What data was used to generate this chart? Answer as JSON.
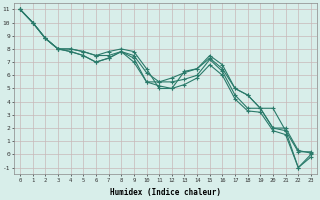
{
  "title": "",
  "xlabel": "Humidex (Indice chaleur)",
  "ylabel": "",
  "bg_color": "#d8eeea",
  "grid_color": "#c8b8b8",
  "line_color": "#2a7a6a",
  "xlim": [
    -0.5,
    23.5
  ],
  "ylim": [
    -1.5,
    11.5
  ],
  "xticks": [
    0,
    1,
    2,
    3,
    4,
    5,
    6,
    7,
    8,
    9,
    10,
    11,
    12,
    13,
    14,
    15,
    16,
    17,
    18,
    19,
    20,
    21,
    22,
    23
  ],
  "yticks": [
    -1,
    0,
    1,
    2,
    3,
    4,
    5,
    6,
    7,
    8,
    9,
    10,
    11
  ],
  "lines": [
    {
      "x": [
        0,
        1,
        2,
        3,
        4,
        5,
        6,
        7,
        8,
        9,
        10,
        11,
        12,
        13,
        14,
        15,
        16,
        17,
        18,
        19,
        20,
        21,
        22,
        23
      ],
      "y": [
        11,
        10,
        8.8,
        8.0,
        8.0,
        7.8,
        7.5,
        7.8,
        8.0,
        7.8,
        6.5,
        5.0,
        5.0,
        6.3,
        6.5,
        7.5,
        6.8,
        5.0,
        4.5,
        3.5,
        3.5,
        1.8,
        0.2,
        0.2
      ]
    },
    {
      "x": [
        0,
        1,
        2,
        3,
        4,
        5,
        6,
        7,
        8,
        9,
        10,
        11,
        12,
        13,
        14,
        15,
        16,
        17,
        18,
        19,
        20,
        21,
        22,
        23
      ],
      "y": [
        11,
        10,
        8.8,
        8.0,
        7.8,
        7.5,
        7.0,
        7.3,
        7.8,
        7.3,
        5.5,
        5.5,
        5.5,
        5.7,
        6.0,
        7.2,
        6.3,
        4.5,
        3.5,
        3.5,
        2.0,
        1.8,
        -1.0,
        0.0
      ]
    },
    {
      "x": [
        0,
        1,
        2,
        3,
        4,
        5,
        6,
        7,
        8,
        9,
        10,
        11,
        12,
        13,
        14,
        15,
        16,
        17,
        18,
        19,
        20,
        21,
        22,
        23
      ],
      "y": [
        11,
        10,
        8.8,
        8.0,
        7.8,
        7.5,
        7.0,
        7.3,
        7.8,
        7.0,
        5.5,
        5.2,
        5.0,
        5.3,
        5.8,
        6.8,
        6.0,
        4.2,
        3.3,
        3.2,
        1.8,
        1.5,
        -1.0,
        -0.2
      ]
    },
    {
      "x": [
        0,
        1,
        2,
        3,
        4,
        5,
        6,
        7,
        8,
        9,
        10,
        11,
        12,
        13,
        14,
        15,
        16,
        17,
        18,
        19,
        20,
        21,
        22,
        23
      ],
      "y": [
        11,
        10,
        8.8,
        8.0,
        8.0,
        7.8,
        7.5,
        7.5,
        7.8,
        7.5,
        6.2,
        5.5,
        5.8,
        6.2,
        6.5,
        7.3,
        6.5,
        5.0,
        4.5,
        3.5,
        2.0,
        2.0,
        0.3,
        0.1
      ]
    }
  ]
}
